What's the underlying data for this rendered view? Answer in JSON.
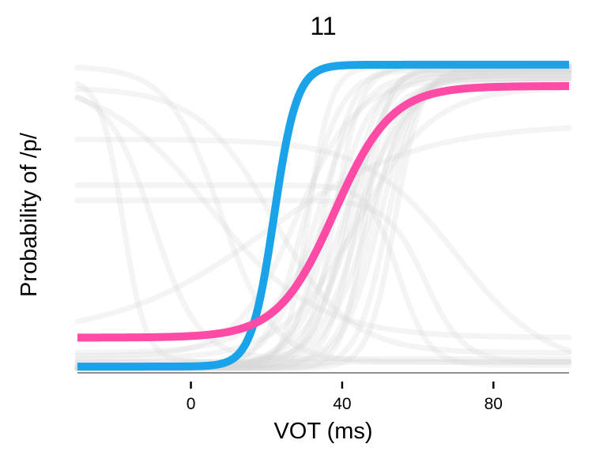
{
  "chart_data": {
    "type": "line",
    "title": "11",
    "xlabel": "VOT (ms)",
    "ylabel": "Probability of /p/",
    "xlim": [
      -30,
      100
    ],
    "ylim": [
      0,
      1
    ],
    "x_ticks": [
      0,
      40,
      80
    ],
    "x_tick_labels": [
      "0",
      "40",
      "80"
    ],
    "y_ticks": [],
    "grid": false,
    "legend": "none",
    "curve_model": "y = lo + (hi - lo) / (1 + exp(-(x - midpoint) / scale))",
    "colors": {
      "blue": "#1aa3e8",
      "pink": "#ff4aa6",
      "background_curves": "#d9d9d9",
      "axis": "#000000"
    },
    "series": [
      {
        "color": "#1aa3e8",
        "highlight": true,
        "midpoint": 22,
        "scale": 3.0,
        "lo": 0.005,
        "hi": 0.995
      },
      {
        "color": "#ff4aa6",
        "highlight": true,
        "midpoint": 38,
        "scale": 7.5,
        "lo": 0.1,
        "hi": 0.925
      }
    ],
    "background_series": [
      {
        "midpoint": 30,
        "scale": 5.0,
        "lo": 0.0,
        "hi": 0.98
      },
      {
        "midpoint": 33,
        "scale": 6.0,
        "lo": 0.0,
        "hi": 0.97
      },
      {
        "midpoint": 35,
        "scale": 4.0,
        "lo": 0.01,
        "hi": 0.99
      },
      {
        "midpoint": 37,
        "scale": 5.5,
        "lo": 0.0,
        "hi": 0.96
      },
      {
        "midpoint": 38,
        "scale": 3.5,
        "lo": 0.02,
        "hi": 0.99
      },
      {
        "midpoint": 40,
        "scale": 6.5,
        "lo": 0.0,
        "hi": 0.95
      },
      {
        "midpoint": 41,
        "scale": 4.5,
        "lo": 0.0,
        "hi": 0.98
      },
      {
        "midpoint": 42,
        "scale": 5.0,
        "lo": 0.01,
        "hi": 0.97
      },
      {
        "midpoint": 43,
        "scale": 7.0,
        "lo": 0.0,
        "hi": 0.94
      },
      {
        "midpoint": 44,
        "scale": 4.0,
        "lo": 0.0,
        "hi": 0.99
      },
      {
        "midpoint": 45,
        "scale": 5.5,
        "lo": 0.02,
        "hi": 0.96
      },
      {
        "midpoint": 46,
        "scale": 3.0,
        "lo": 0.0,
        "hi": 0.98
      },
      {
        "midpoint": 47,
        "scale": 6.0,
        "lo": 0.0,
        "hi": 0.97
      },
      {
        "midpoint": 48,
        "scale": 4.5,
        "lo": 0.01,
        "hi": 0.95
      },
      {
        "midpoint": 50,
        "scale": 5.0,
        "lo": 0.0,
        "hi": 0.99
      },
      {
        "midpoint": 52,
        "scale": 4.0,
        "lo": 0.0,
        "hi": 0.97
      },
      {
        "midpoint": 54,
        "scale": 3.5,
        "lo": 0.0,
        "hi": 0.98
      },
      {
        "midpoint": 36,
        "scale": 9.0,
        "lo": 0.05,
        "hi": 0.93
      },
      {
        "midpoint": 44,
        "scale": 10.0,
        "lo": 0.03,
        "hi": 0.92
      },
      {
        "midpoint": 28,
        "scale": 8.0,
        "lo": 0.04,
        "hi": 0.95
      },
      {
        "midpoint": 31,
        "scale": 3.0,
        "lo": 0.0,
        "hi": 0.99
      },
      {
        "midpoint": -18,
        "scale": -3.0,
        "lo": 0.02,
        "hi": 0.95
      },
      {
        "midpoint": -10,
        "scale": -6.0,
        "lo": 0.03,
        "hi": 0.92
      },
      {
        "midpoint": 8,
        "scale": -7.0,
        "lo": 0.02,
        "hi": 0.99
      },
      {
        "midpoint": 22,
        "scale": -10.0,
        "lo": 0.05,
        "hi": 0.92
      },
      {
        "midpoint": 55,
        "scale": -4.0,
        "lo": 0.01,
        "hi": 0.6
      },
      {
        "midpoint": 62,
        "scale": -5.0,
        "lo": 0.02,
        "hi": 0.55
      },
      {
        "midpoint": 5,
        "scale": -14.0,
        "lo": 0.1,
        "hi": 0.95
      },
      {
        "midpoint": 20,
        "scale": 20.0,
        "lo": 0.1,
        "hi": 0.8
      },
      {
        "midpoint": 70,
        "scale": -12.0,
        "lo": 0.0,
        "hi": 0.75
      }
    ]
  }
}
